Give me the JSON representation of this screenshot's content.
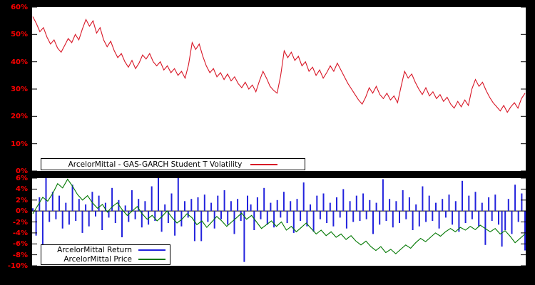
{
  "colors": {
    "background": "#000000",
    "panel": "#ffffff",
    "tick_label": "#ff0000",
    "axis": "#000000"
  },
  "chart_data": [
    {
      "id": "volatility",
      "type": "line",
      "title": "",
      "xlabel": "",
      "ylabel": "",
      "ylim": [
        0,
        60
      ],
      "grid": false,
      "legend_position": "bottom-center-inside",
      "yticks": [
        {
          "v": 60,
          "label": "60%"
        },
        {
          "v": 50,
          "label": "50%"
        },
        {
          "v": 40,
          "label": "40%"
        },
        {
          "v": 30,
          "label": "30%"
        },
        {
          "v": 20,
          "label": "20%"
        },
        {
          "v": 10,
          "label": "10%"
        },
        {
          "v": 0,
          "label": "0%"
        }
      ],
      "series": [
        {
          "name": "ArcelorMittal - GAS-GARCH Student T Volatility",
          "color": "#d81626",
          "style": "line",
          "unit": "percent",
          "values": [
            56.5,
            54,
            51,
            52.5,
            49,
            46.5,
            48,
            45,
            43.5,
            46,
            48.5,
            47,
            50,
            48,
            52,
            55.5,
            53,
            55,
            50.5,
            52.5,
            48,
            45.5,
            47.5,
            44,
            41.5,
            43,
            40,
            38,
            40.5,
            37.5,
            39.5,
            42.5,
            41,
            43,
            40,
            38.5,
            40,
            37,
            38.5,
            36,
            37.5,
            35,
            36.5,
            34,
            39,
            47,
            44.5,
            46.5,
            42,
            38.5,
            36,
            37.5,
            34.5,
            36,
            33.5,
            35.5,
            33,
            34.5,
            32,
            30.5,
            32.5,
            30,
            31.5,
            29,
            33,
            36.5,
            34,
            31,
            29.5,
            28.5,
            35,
            44,
            41.5,
            43.5,
            40.5,
            42,
            38.5,
            40,
            36.5,
            38,
            35,
            37,
            34,
            36,
            38.5,
            36.5,
            39.5,
            37,
            34.5,
            32,
            30,
            28,
            26,
            24.5,
            27,
            30.5,
            28.5,
            31,
            28,
            26.5,
            28.5,
            26,
            27.5,
            25,
            31,
            36.5,
            34,
            35.5,
            32.5,
            30,
            28,
            30.5,
            27.5,
            29,
            26.5,
            28,
            25.5,
            27,
            24.5,
            23,
            25.5,
            23.5,
            26,
            24,
            30,
            33.5,
            31,
            32.5,
            29.5,
            27,
            25,
            23.5,
            22,
            24,
            21.5,
            23.5,
            25,
            23,
            26.5,
            28.5
          ]
        }
      ]
    },
    {
      "id": "return-price",
      "type": "mixed",
      "title": "",
      "xlabel": "",
      "ylabel": "",
      "ylim": [
        -10,
        6
      ],
      "grid": false,
      "zeroaxis": true,
      "legend_position": "bottom-left-inside",
      "yticks": [
        {
          "v": 6,
          "label": "6%"
        },
        {
          "v": 4,
          "label": "4%"
        },
        {
          "v": 2,
          "label": "2%"
        },
        {
          "v": 0,
          "label": "0%"
        },
        {
          "v": -2,
          "label": "-2%"
        },
        {
          "v": -4,
          "label": "-4%"
        },
        {
          "v": -6,
          "label": "-6%"
        },
        {
          "v": -8,
          "label": "-8%"
        },
        {
          "v": -10,
          "label": "-10%"
        }
      ],
      "series": [
        {
          "name": "ArcelorMittal Return",
          "color": "#2222dd",
          "style": "impulses",
          "unit": "percent",
          "values": [
            0.5,
            -4.5,
            2.5,
            -6.3,
            6.2,
            -2.0,
            3.5,
            -1.5,
            2.8,
            -3.2,
            1.5,
            -2.5,
            4.8,
            -1.8,
            2.2,
            -4.0,
            1.2,
            -2.8,
            3.5,
            -1.0,
            2.8,
            -3.5,
            1.5,
            -1.2,
            4.2,
            -2.2,
            2.0,
            -4.8,
            1.0,
            -2.0,
            3.8,
            -1.5,
            2.2,
            -3.0,
            1.8,
            -2.5,
            4.5,
            -1.8,
            6.0,
            -3.8,
            1.2,
            -2.2,
            3.2,
            -4.5,
            6.3,
            -2.8,
            1.8,
            -1.2,
            2.2,
            -5.5,
            2.5,
            -5.5,
            3.0,
            -2.0,
            1.5,
            -3.2,
            2.8,
            -1.5,
            3.8,
            -2.5,
            1.8,
            -4.2,
            2.2,
            -1.8,
            -9.3,
            2.8,
            1.2,
            -3.5,
            2.5,
            -1.5,
            4.2,
            -2.5,
            1.5,
            -3.0,
            2.0,
            -1.2,
            3.5,
            -2.2,
            1.8,
            -4.0,
            2.2,
            -1.8,
            5.2,
            -2.8,
            1.2,
            -3.8,
            2.8,
            -1.5,
            3.2,
            -2.2,
            1.5,
            -2.8,
            2.5,
            -1.2,
            4.0,
            -3.2,
            1.8,
            -2.0,
            2.8,
            -1.8,
            3.2,
            -1.5,
            2.0,
            -4.2,
            1.5,
            -2.5,
            5.8,
            -1.8,
            2.2,
            -3.0,
            1.8,
            -2.2,
            3.8,
            -1.5,
            2.5,
            -3.5,
            1.2,
            -2.8,
            4.5,
            -2.0,
            2.8,
            -1.8,
            1.5,
            -3.2,
            2.2,
            -1.2,
            3.0,
            -2.5,
            1.8,
            -3.8,
            5.5,
            -2.2,
            2.8,
            -1.5,
            3.5,
            -2.8,
            1.5,
            -6.2,
            2.5,
            -1.8,
            3.0,
            -2.5,
            -6.5,
            -3.5,
            2.2,
            -4.2,
            4.8,
            -2.0,
            3.2,
            -7.2
          ]
        },
        {
          "name": "ArcelorMittal Price",
          "color": "#007700",
          "style": "line",
          "unit": "percent",
          "values": [
            -0.5,
            1.0,
            2.5,
            1.8,
            3.2,
            5.0,
            4.2,
            5.8,
            4.5,
            3.0,
            2.0,
            2.8,
            1.5,
            0.5,
            1.2,
            -0.2,
            0.8,
            1.5,
            0.2,
            -0.8,
            0.0,
            0.8,
            -0.5,
            -1.5,
            -0.8,
            -1.8,
            -1.0,
            0.0,
            -1.2,
            -2.2,
            -1.5,
            -0.5,
            -1.2,
            -2.5,
            -1.8,
            -3.0,
            -2.0,
            -1.0,
            -1.8,
            -2.8,
            -2.0,
            -1.2,
            -0.4,
            -1.5,
            -0.8,
            -2.0,
            -3.2,
            -2.5,
            -1.8,
            -2.8,
            -2.0,
            -3.5,
            -2.8,
            -3.8,
            -3.0,
            -2.2,
            -3.2,
            -4.2,
            -3.5,
            -4.5,
            -3.8,
            -4.8,
            -4.2,
            -5.2,
            -4.5,
            -5.5,
            -6.2,
            -5.5,
            -6.5,
            -7.2,
            -6.5,
            -7.6,
            -7.0,
            -7.8,
            -7.0,
            -6.2,
            -6.8,
            -5.8,
            -5.0,
            -5.6,
            -4.8,
            -4.0,
            -4.6,
            -3.8,
            -3.2,
            -3.8,
            -3.0,
            -3.5,
            -2.8,
            -3.4,
            -2.6,
            -3.2,
            -3.8,
            -3.2,
            -4.2,
            -3.6,
            -4.6,
            -5.8,
            -5.0,
            -4.2
          ]
        }
      ]
    }
  ]
}
